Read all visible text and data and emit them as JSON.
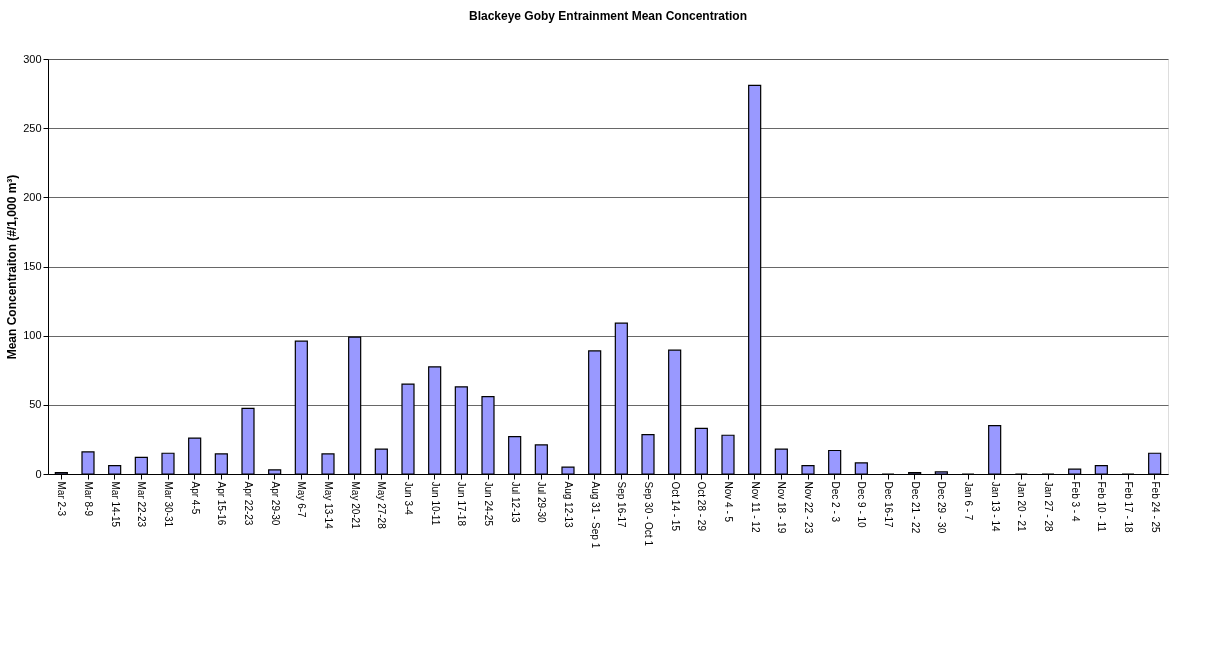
{
  "chart_data": {
    "type": "bar",
    "title": "Blackeye Goby Entrainment Mean Concentration",
    "ylabel": "Mean Concentraiton (#/1,000 m³)",
    "categories": [
      "Mar 2-3",
      "Mar 8-9",
      "Mar 14-15",
      "Mar 22-23",
      "Mar 30-31",
      "Apr 4-5",
      "Apr 15-16",
      "Apr 22-23",
      "Apr 29-30",
      "May 6-7",
      "May 13-14",
      "May 20-21",
      "May 27-28",
      "Jun 3-4",
      "Jun 10-11",
      "Jun 17-18",
      "Jun 24-25",
      "Jul 12-13",
      "Jul 29-30",
      "Aug 12-13",
      "Aug 31 - Sep 1",
      "Sep 16-17",
      "Sep 30 - Oct 1",
      "Oct 14 - 15",
      "Oct 28 - 29",
      "Nov 4 - 5",
      "Nov 11 - 12",
      "Nov 18 - 19",
      "Nov 22 - 23",
      "Dec 2 - 3",
      "Dec 9 - 10",
      "Dec 16-17",
      "Dec 21 - 22",
      "Dec 29 - 30",
      "Jan 6 - 7",
      "Jan 13 - 14",
      "Jan 20 - 21",
      "Jan 27 - 28",
      "Feb 3 - 4",
      "Feb 10 - 11",
      "Feb 17 - 18",
      "Feb 24 - 25"
    ],
    "values": [
      1,
      16,
      6,
      12,
      15,
      26,
      14.5,
      47.5,
      3,
      96,
      14.5,
      99,
      18,
      65,
      77.5,
      63,
      56,
      27,
      21,
      5,
      89,
      109,
      28.5,
      89.5,
      33,
      28,
      281,
      18,
      6,
      17,
      8,
      0,
      1,
      1.5,
      0,
      35,
      0,
      0,
      3.5,
      6,
      0,
      15
    ],
    "color": "#9999ff",
    "ylim": [
      0,
      300
    ],
    "yticks": [
      0,
      50,
      100,
      150,
      200,
      250,
      300
    ],
    "grid": "y"
  }
}
